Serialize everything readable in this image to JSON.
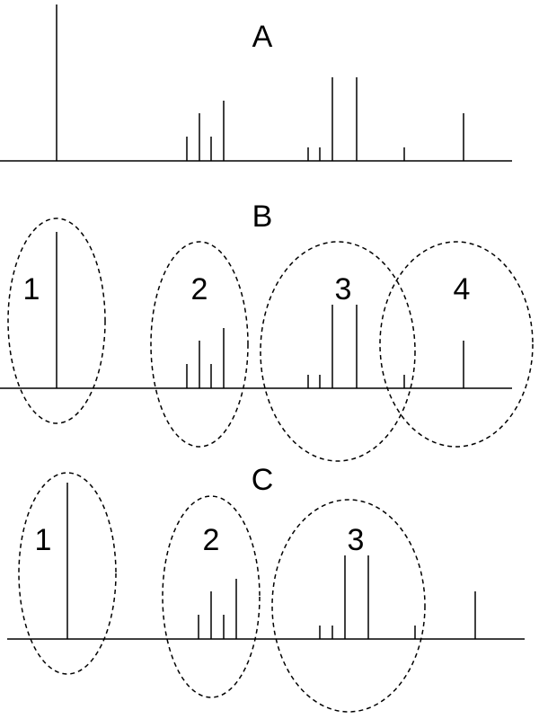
{
  "panels": [
    {
      "label": "A",
      "peak_heights": [
        174,
        0,
        0,
        0,
        27,
        53,
        27,
        67,
        0,
        15,
        15,
        93,
        93,
        15,
        53
      ],
      "groups": []
    },
    {
      "label": "B",
      "peak_heights": [
        174,
        27,
        53,
        27,
        67,
        15,
        15,
        93,
        93,
        15,
        53
      ],
      "groups": [
        "1",
        "2",
        "3",
        "4"
      ]
    },
    {
      "label": "C",
      "peak_heights": [
        174,
        27,
        53,
        27,
        67,
        15,
        15,
        93,
        93,
        15,
        53
      ],
      "groups": [
        "1",
        "2",
        "3"
      ]
    }
  ]
}
